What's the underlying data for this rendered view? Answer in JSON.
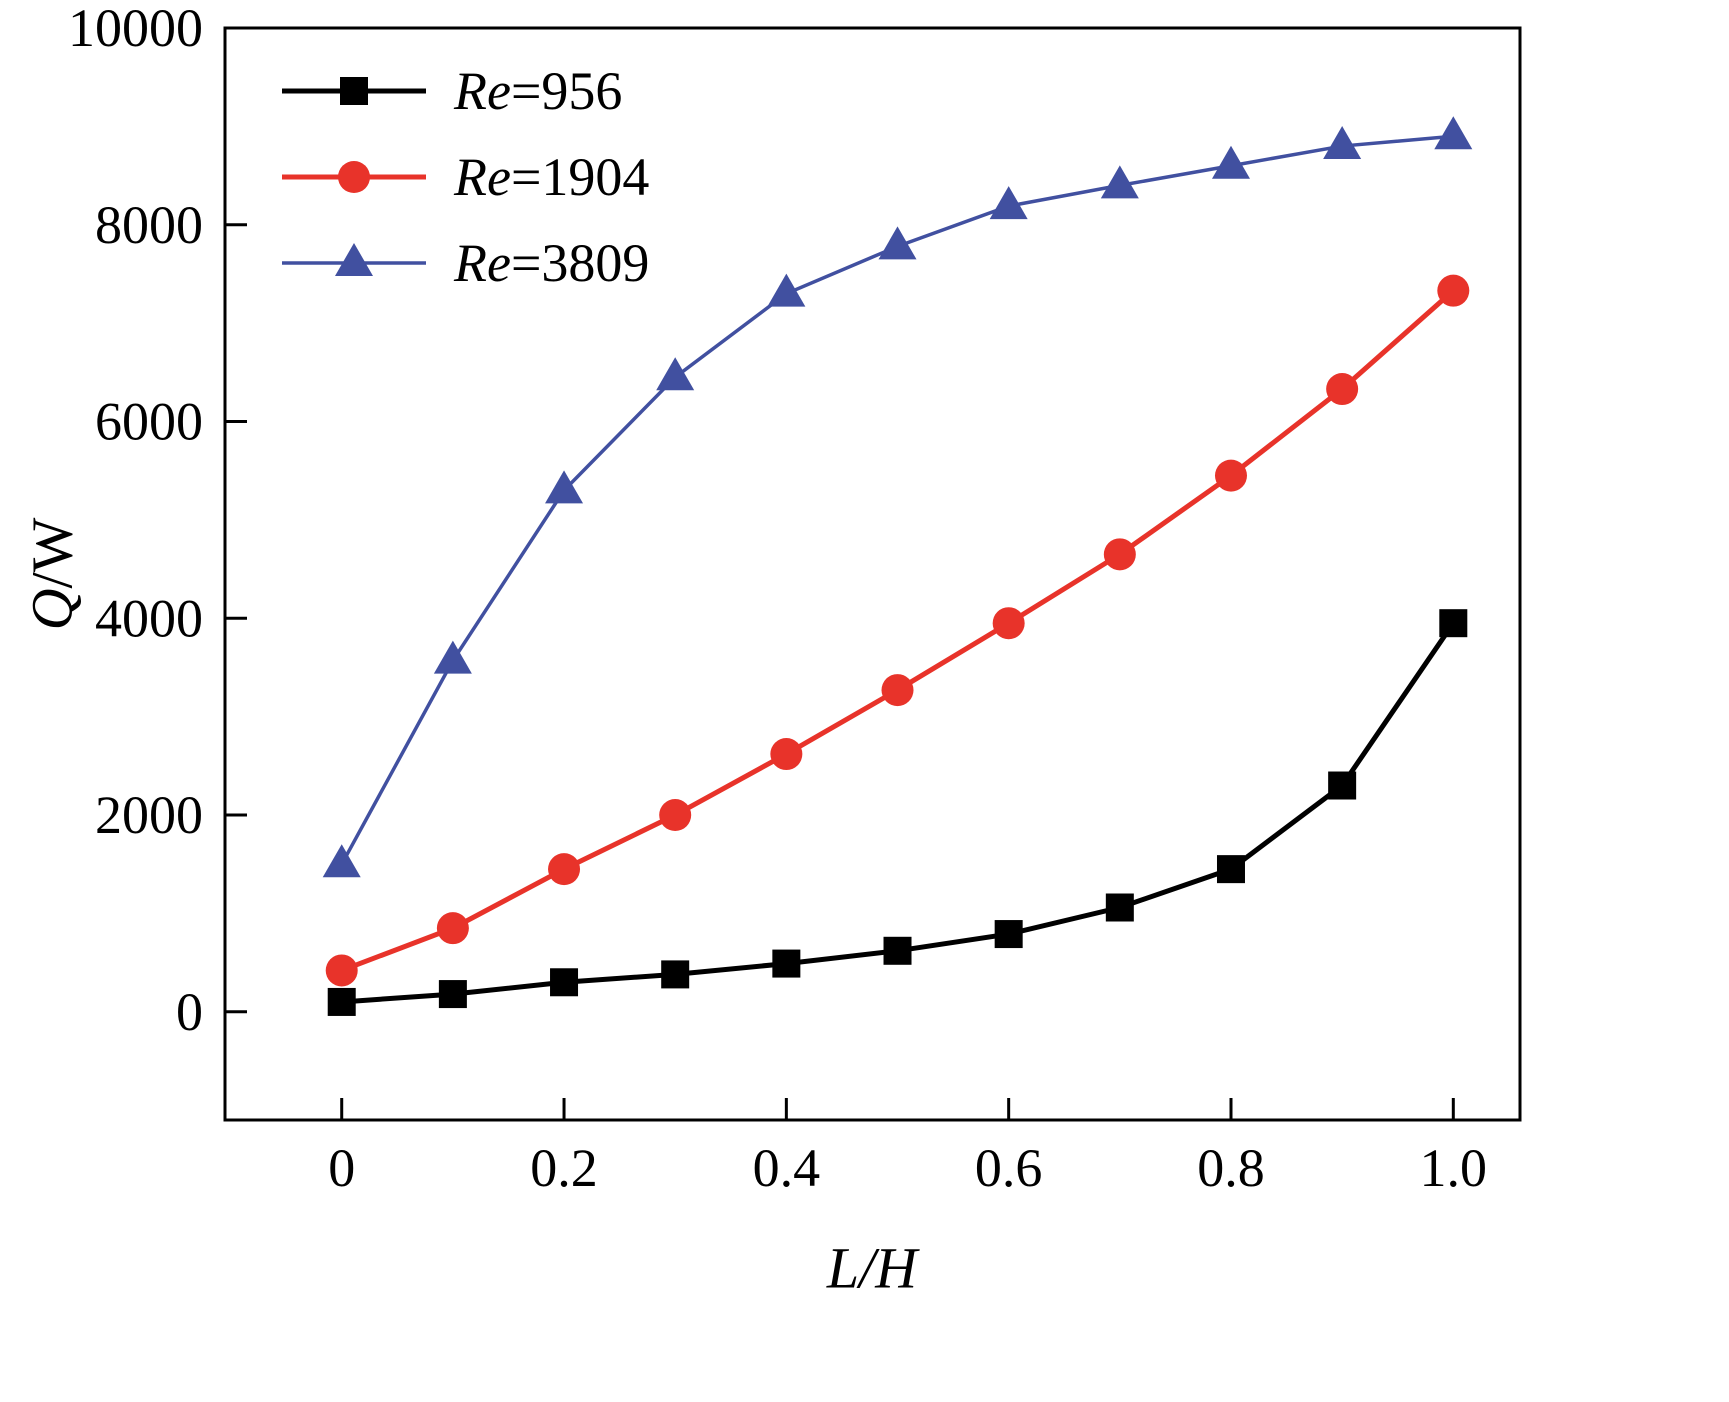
{
  "chart_data": {
    "type": "line",
    "title": "",
    "xlabel": "L/H",
    "ylabel": "Q/W",
    "grid": false,
    "legend_position": "top-left",
    "xlim": [
      -0.105,
      1.06
    ],
    "ylim": [
      -1100,
      10000
    ],
    "xticks": [
      0,
      0.2,
      0.4,
      0.6,
      0.8,
      1.0
    ],
    "xtick_labels": [
      "0",
      "0.2",
      "0.4",
      "0.6",
      "0.8",
      "1.0"
    ],
    "yticks": [
      0,
      2000,
      4000,
      6000,
      8000,
      10000
    ],
    "ytick_labels": [
      "0",
      "2000",
      "4000",
      "6000",
      "8000",
      "10000"
    ],
    "x": [
      0,
      0.1,
      0.2,
      0.3,
      0.4,
      0.5,
      0.6,
      0.7,
      0.8,
      0.9,
      1.0
    ],
    "series": [
      {
        "name": "Re=956",
        "marker": "square",
        "color": "#000000",
        "values": [
          100,
          180,
          300,
          380,
          490,
          620,
          790,
          1060,
          1450,
          2300,
          3950
        ]
      },
      {
        "name": "Re=1904",
        "marker": "circle",
        "color": "#e8332a",
        "values": [
          420,
          850,
          1450,
          2000,
          2620,
          3270,
          3950,
          4650,
          5450,
          6330,
          7330
        ]
      },
      {
        "name": "Re=3809",
        "marker": "triangle",
        "color": "#4150a0",
        "values": [
          1500,
          3570,
          5300,
          6450,
          7300,
          7780,
          8190,
          8400,
          8600,
          8800,
          8900
        ]
      }
    ]
  },
  "legend": {
    "items": [
      {
        "prefix": "Re",
        "rest": "=956"
      },
      {
        "prefix": "Re",
        "rest": "=1904"
      },
      {
        "prefix": "Re",
        "rest": "=3809"
      }
    ]
  },
  "axes": {
    "ylabel_var": "Q",
    "ylabel_rest": "/W",
    "xlabel": "L/H"
  }
}
